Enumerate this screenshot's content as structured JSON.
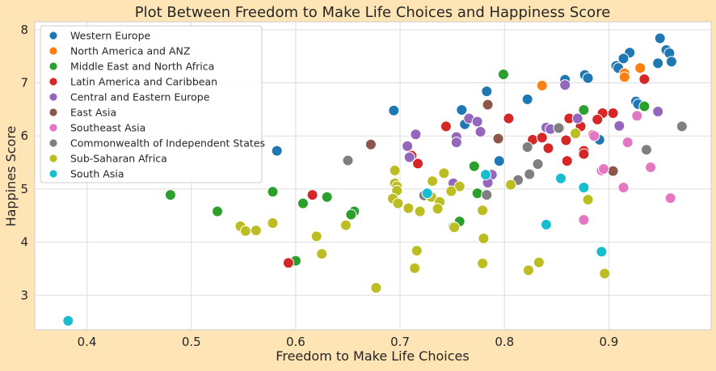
{
  "chart_data": {
    "type": "scatter",
    "title": "Plot Between Freedom to Make Life Choices and Happiness Score",
    "xlabel": "Freedom to Make Life Choices",
    "ylabel": "Happines Score",
    "xlim": [
      0.35,
      0.998
    ],
    "ylim": [
      2.35,
      8.15
    ],
    "xticks": [
      "0.4",
      "0.5",
      "0.6",
      "0.7",
      "0.8",
      "0.9"
    ],
    "xtick_values": [
      0.4,
      0.5,
      0.6,
      0.7,
      0.8,
      0.9
    ],
    "yticks": [
      "3",
      "4",
      "5",
      "6",
      "7",
      "8"
    ],
    "ytick_values": [
      3,
      4,
      5,
      6,
      7,
      8
    ],
    "grid": true,
    "legend_position": "top-left",
    "series": [
      {
        "name": "Western Europe",
        "color": "#1f77b4",
        "points": [
          [
            0.949,
            7.84
          ],
          [
            0.955,
            7.62
          ],
          [
            0.958,
            7.56
          ],
          [
            0.92,
            7.57
          ],
          [
            0.914,
            7.46
          ],
          [
            0.947,
            7.37
          ],
          [
            0.96,
            7.4
          ],
          [
            0.907,
            7.32
          ],
          [
            0.909,
            7.28
          ],
          [
            0.877,
            7.15
          ],
          [
            0.858,
            7.06
          ],
          [
            0.88,
            7.09
          ],
          [
            0.822,
            6.69
          ],
          [
            0.694,
            6.48
          ],
          [
            0.759,
            6.49
          ],
          [
            0.783,
            6.84
          ],
          [
            0.926,
            6.65
          ],
          [
            0.762,
            6.22
          ],
          [
            0.795,
            5.53
          ],
          [
            0.891,
            5.93
          ],
          [
            0.582,
            5.72
          ],
          [
            0.928,
            6.6
          ]
        ]
      },
      {
        "name": "North America and ANZ",
        "color": "#ff7f0e",
        "points": [
          [
            0.93,
            7.28
          ],
          [
            0.915,
            7.18
          ],
          [
            0.915,
            7.11
          ],
          [
            0.836,
            6.95
          ]
        ]
      },
      {
        "name": "Middle East and North Africa",
        "color": "#2ca02c",
        "points": [
          [
            0.799,
            7.16
          ],
          [
            0.876,
            6.49
          ],
          [
            0.934,
            6.56
          ],
          [
            0.48,
            4.89
          ],
          [
            0.525,
            4.58
          ],
          [
            0.578,
            4.95
          ],
          [
            0.607,
            4.73
          ],
          [
            0.63,
            4.85
          ],
          [
            0.656,
            4.58
          ],
          [
            0.653,
            4.52
          ],
          [
            0.6,
            3.65
          ],
          [
            0.757,
            4.39
          ],
          [
            0.751,
            4.29
          ],
          [
            0.771,
            5.43
          ],
          [
            0.774,
            4.92
          ]
        ]
      },
      {
        "name": "Latin America and Caribbean",
        "color": "#d62728",
        "points": [
          [
            0.934,
            7.07
          ],
          [
            0.904,
            6.43
          ],
          [
            0.894,
            6.43
          ],
          [
            0.862,
            6.33
          ],
          [
            0.873,
            6.18
          ],
          [
            0.889,
            6.31
          ],
          [
            0.804,
            6.33
          ],
          [
            0.744,
            6.18
          ],
          [
            0.827,
            5.93
          ],
          [
            0.859,
            5.92
          ],
          [
            0.836,
            5.97
          ],
          [
            0.842,
            5.77
          ],
          [
            0.876,
            5.72
          ],
          [
            0.876,
            5.66
          ],
          [
            0.86,
            5.53
          ],
          [
            0.717,
            5.48
          ],
          [
            0.711,
            5.63
          ],
          [
            0.616,
            4.89
          ],
          [
            0.593,
            3.61
          ],
          [
            0.885,
            6.02
          ]
        ]
      },
      {
        "name": "Central and Eastern Europe",
        "color": "#9467bd",
        "points": [
          [
            0.858,
            6.96
          ],
          [
            0.947,
            6.46
          ],
          [
            0.87,
            6.33
          ],
          [
            0.766,
            6.33
          ],
          [
            0.774,
            6.27
          ],
          [
            0.84,
            6.16
          ],
          [
            0.844,
            6.13
          ],
          [
            0.91,
            6.19
          ],
          [
            0.754,
            5.98
          ],
          [
            0.777,
            6.08
          ],
          [
            0.715,
            6.03
          ],
          [
            0.707,
            5.81
          ],
          [
            0.709,
            5.6
          ],
          [
            0.754,
            5.88
          ],
          [
            0.788,
            5.27
          ],
          [
            0.784,
            5.12
          ],
          [
            0.751,
            5.11
          ]
        ]
      },
      {
        "name": "East Asia",
        "color": "#8c564b",
        "points": [
          [
            0.784,
            6.59
          ],
          [
            0.853,
            6.15
          ],
          [
            0.794,
            5.95
          ],
          [
            0.672,
            5.84
          ],
          [
            0.904,
            5.34
          ]
        ]
      },
      {
        "name": "Southeast Asia",
        "color": "#e377c2",
        "points": [
          [
            0.927,
            6.38
          ],
          [
            0.886,
            6.0
          ],
          [
            0.918,
            5.88
          ],
          [
            0.893,
            5.35
          ],
          [
            0.895,
            5.38
          ],
          [
            0.914,
            5.03
          ],
          [
            0.876,
            4.42
          ],
          [
            0.94,
            5.41
          ],
          [
            0.959,
            4.83
          ]
        ]
      },
      {
        "name": "Commonwealth of Independent States",
        "color": "#7f7f7f",
        "points": [
          [
            0.97,
            6.18
          ],
          [
            0.936,
            5.74
          ],
          [
            0.822,
            5.79
          ],
          [
            0.832,
            5.47
          ],
          [
            0.824,
            5.28
          ],
          [
            0.813,
            5.17
          ],
          [
            0.783,
            4.89
          ],
          [
            0.723,
            4.88
          ],
          [
            0.65,
            5.54
          ],
          [
            0.852,
            6.15
          ]
        ]
      },
      {
        "name": "Sub-Saharan Africa",
        "color": "#bcbd22",
        "points": [
          [
            0.868,
            6.05
          ],
          [
            0.695,
            5.35
          ],
          [
            0.742,
            5.3
          ],
          [
            0.731,
            5.15
          ],
          [
            0.757,
            5.05
          ],
          [
            0.806,
            5.08
          ],
          [
            0.695,
            5.11
          ],
          [
            0.697,
            5.05
          ],
          [
            0.697,
            4.97
          ],
          [
            0.693,
            4.82
          ],
          [
            0.698,
            4.73
          ],
          [
            0.708,
            4.64
          ],
          [
            0.719,
            4.58
          ],
          [
            0.73,
            4.85
          ],
          [
            0.738,
            4.76
          ],
          [
            0.736,
            4.63
          ],
          [
            0.749,
            4.96
          ],
          [
            0.779,
            4.6
          ],
          [
            0.88,
            4.8
          ],
          [
            0.547,
            4.3
          ],
          [
            0.552,
            4.21
          ],
          [
            0.562,
            4.22
          ],
          [
            0.578,
            4.36
          ],
          [
            0.62,
            4.11
          ],
          [
            0.648,
            4.32
          ],
          [
            0.625,
            3.78
          ],
          [
            0.716,
            3.84
          ],
          [
            0.78,
            4.07
          ],
          [
            0.752,
            4.28
          ],
          [
            0.714,
            3.51
          ],
          [
            0.779,
            3.6
          ],
          [
            0.823,
            3.47
          ],
          [
            0.833,
            3.62
          ],
          [
            0.896,
            3.41
          ],
          [
            0.677,
            3.14
          ]
        ]
      },
      {
        "name": "South Asia",
        "color": "#17becf",
        "points": [
          [
            0.782,
            5.27
          ],
          [
            0.854,
            5.2
          ],
          [
            0.876,
            5.03
          ],
          [
            0.726,
            4.92
          ],
          [
            0.84,
            4.33
          ],
          [
            0.893,
            3.82
          ],
          [
            0.382,
            2.52
          ]
        ]
      }
    ]
  }
}
